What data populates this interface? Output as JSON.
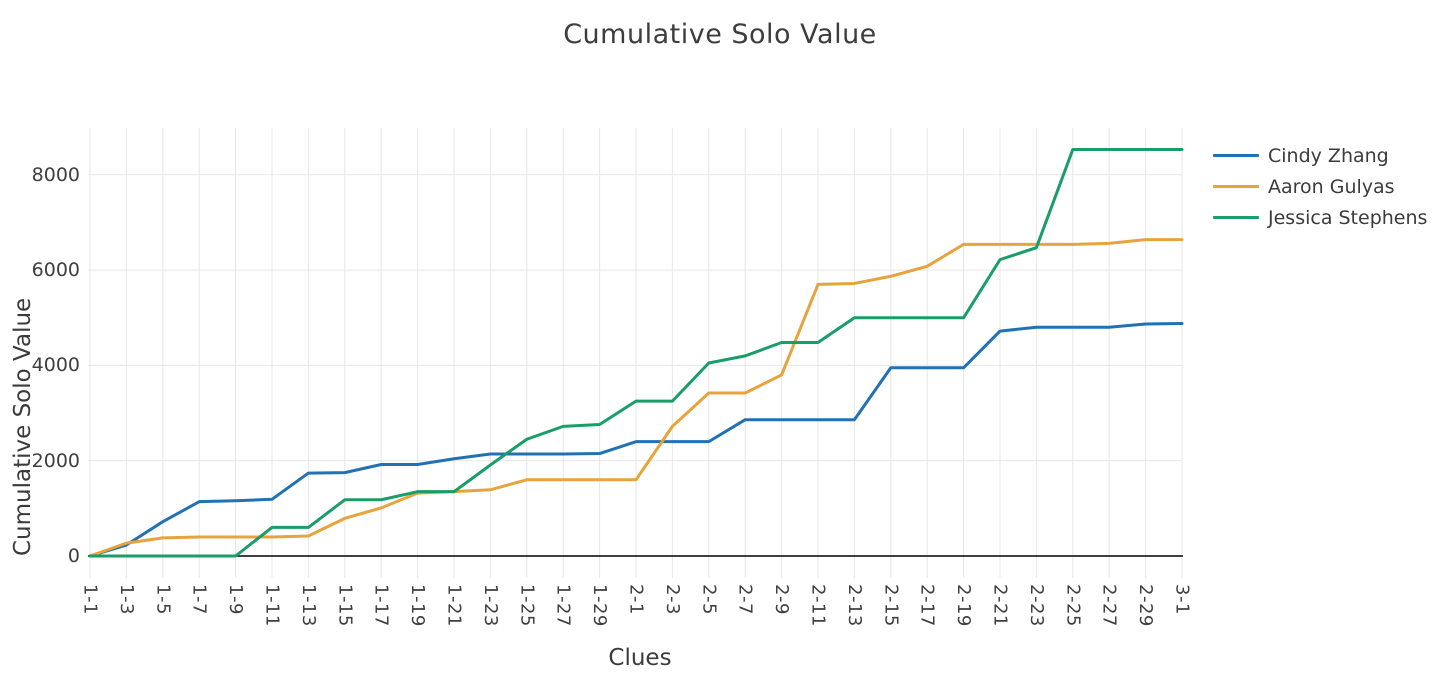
{
  "chart_data": {
    "type": "line",
    "title": "Cumulative Solo Value",
    "xlabel": "Clues",
    "ylabel": "Cumulative Solo Value",
    "legend_position": "right",
    "grid": true,
    "x_tick_rotation": 90,
    "yticks": [
      0,
      2000,
      4000,
      6000,
      8000
    ],
    "ylim": [
      0,
      9000
    ],
    "x": [
      "1-1",
      "1-3",
      "1-5",
      "1-7",
      "1-9",
      "1-11",
      "1-13",
      "1-15",
      "1-17",
      "1-19",
      "1-21",
      "1-23",
      "1-25",
      "1-27",
      "1-29",
      "2-1",
      "2-3",
      "2-5",
      "2-7",
      "2-9",
      "2-11",
      "2-13",
      "2-15",
      "2-17",
      "2-19",
      "2-21",
      "2-23",
      "2-25",
      "2-27",
      "2-29",
      "3-1"
    ],
    "series": [
      {
        "name": "Cindy Zhang",
        "color": "#2171b4",
        "values": [
          0,
          230,
          720,
          1140,
          1160,
          1190,
          1740,
          1750,
          1920,
          1920,
          2040,
          2140,
          2140,
          2140,
          2150,
          2400,
          2400,
          2400,
          2860,
          2860,
          2860,
          2860,
          3950,
          3950,
          3950,
          4720,
          4800,
          4800,
          4800,
          4870,
          4880
        ]
      },
      {
        "name": "Aaron Gulyas",
        "color": "#e7a33c",
        "values": [
          0,
          270,
          380,
          400,
          400,
          400,
          420,
          790,
          1010,
          1320,
          1350,
          1390,
          1600,
          1600,
          1600,
          1600,
          2720,
          3420,
          3420,
          3800,
          5700,
          5720,
          5870,
          6080,
          6540,
          6540,
          6540,
          6540,
          6560,
          6640,
          6640
        ]
      },
      {
        "name": "Jessica Stephens",
        "color": "#199d69",
        "values": [
          0,
          0,
          0,
          0,
          0,
          600,
          600,
          1180,
          1180,
          1350,
          1350,
          1910,
          2450,
          2720,
          2760,
          3250,
          3250,
          4050,
          4200,
          4480,
          4480,
          5000,
          5000,
          5000,
          5000,
          6220,
          6470,
          8530,
          8530,
          8530,
          8530
        ]
      }
    ],
    "colors": {
      "grid": "#e7e7e7",
      "zero_line": "#000000",
      "text": "#3b3b3b",
      "background": "#ffffff"
    }
  }
}
